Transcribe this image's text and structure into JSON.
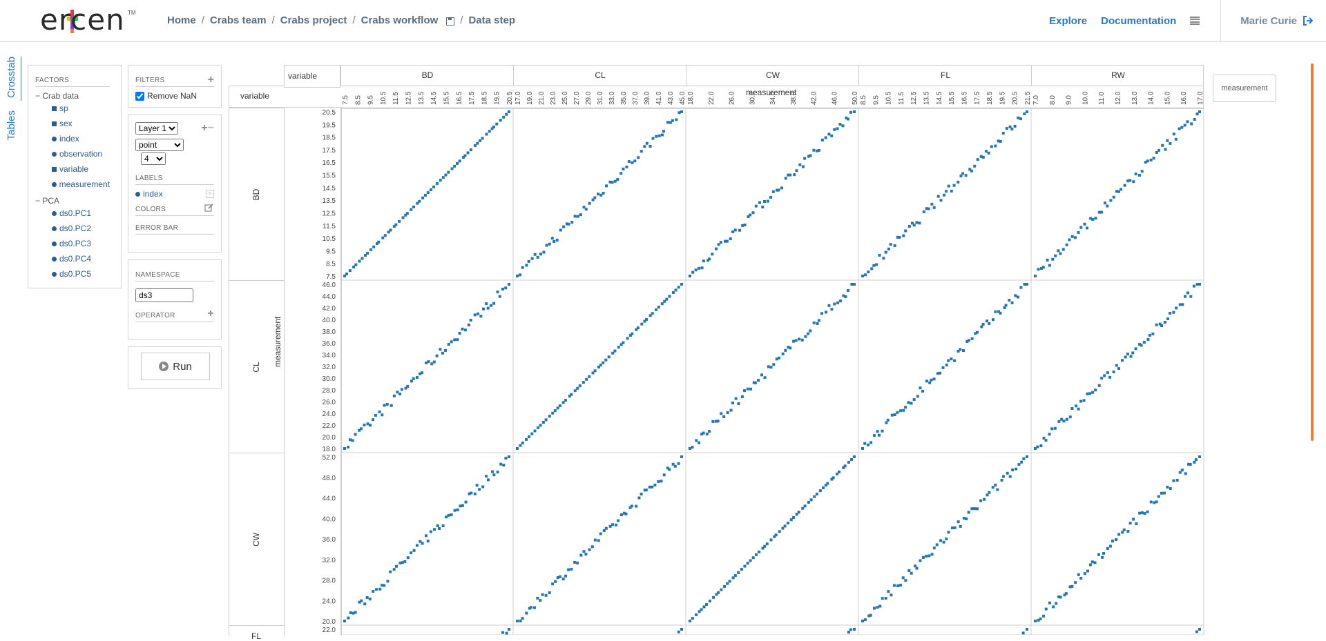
{
  "header": {
    "logo_text": "ercen",
    "logo_tm": "TM",
    "breadcrumb": [
      "Home",
      "Crabs team",
      "Crabs project",
      "Crabs workflow",
      "Data step"
    ],
    "nav": {
      "explore": "Explore",
      "documentation": "Documentation"
    },
    "user": "Marie Curie"
  },
  "vertical_tabs": {
    "crosstab": "Crosstab",
    "tables": "Tables"
  },
  "factors": {
    "title": "FACTORS",
    "groups": [
      {
        "name": "Crab data",
        "items": [
          {
            "label": "sp",
            "kind": "square"
          },
          {
            "label": "sex",
            "kind": "square"
          },
          {
            "label": "index",
            "kind": "dot"
          },
          {
            "label": "observation",
            "kind": "dot"
          },
          {
            "label": "variable",
            "kind": "square"
          },
          {
            "label": "measurement",
            "kind": "dot"
          }
        ]
      },
      {
        "name": "PCA",
        "items": [
          {
            "label": "ds0.PC1",
            "kind": "dot"
          },
          {
            "label": "ds0.PC2",
            "kind": "dot"
          },
          {
            "label": "ds0.PC3",
            "kind": "dot"
          },
          {
            "label": "ds0.PC4",
            "kind": "dot"
          },
          {
            "label": "ds0.PC5",
            "kind": "dot"
          }
        ]
      }
    ]
  },
  "filters": {
    "title": "FILTERS",
    "remove_nan": "Remove NaN",
    "remove_nan_checked": true
  },
  "layer": {
    "layer_select": "Layer 1",
    "geom_select": "point",
    "size_select": "4",
    "labels_title": "LABELS",
    "label_item": "index",
    "colors_title": "COLORS",
    "error_bar_title": "ERROR BAR"
  },
  "namespace": {
    "title": "NAMESPACE",
    "value": "ds3",
    "operator_title": "OPERATOR"
  },
  "run_label": "Run",
  "crosstab": {
    "col_factor": "variable",
    "row_factor": "variable",
    "x_axis_label": "measurement",
    "y_axis_label": "measurement",
    "columns": [
      "BD",
      "CL",
      "CW",
      "FL",
      "RW"
    ],
    "rows": [
      "BD",
      "CL",
      "CW",
      "FL"
    ],
    "side_pill": "measurement",
    "point_color": "#2475b4",
    "accent_color": "#f07a3a"
  },
  "chart_data": {
    "type": "scatter",
    "title": "",
    "x_ticks": {
      "BD": [
        "7.5",
        "8.5",
        "9.5",
        "10.5",
        "11.5",
        "12.5",
        "13.5",
        "14.5",
        "15.5",
        "16.5",
        "17.5",
        "18.5",
        "19.5",
        "20.5"
      ],
      "CL": [
        "17.0",
        "19.0",
        "21.0",
        "23.0",
        "25.0",
        "27.0",
        "29.0",
        "31.0",
        "33.0",
        "35.0",
        "37.0",
        "39.0",
        "41.0",
        "43.0",
        "45.0"
      ],
      "CW": [
        "18.0",
        "22.0",
        "26.0",
        "30.0",
        "34.0",
        "38.0",
        "42.0",
        "46.0",
        "50.0"
      ],
      "FL": [
        "8.5",
        "9.5",
        "10.5",
        "11.5",
        "12.5",
        "13.5",
        "14.5",
        "15.5",
        "16.5",
        "17.5",
        "18.5",
        "19.5",
        "20.5",
        "21.5"
      ],
      "RW": [
        "7.0",
        "8.0",
        "9.0",
        "10.0",
        "11.0",
        "12.0",
        "13.0",
        "14.0",
        "15.0",
        "16.0",
        "17.0"
      ]
    },
    "y_ticks": {
      "BD": [
        "20.5",
        "19.5",
        "18.5",
        "17.5",
        "16.5",
        "15.5",
        "14.5",
        "13.5",
        "12.5",
        "11.5",
        "10.5",
        "9.5",
        "8.5",
        "7.5"
      ],
      "CL": [
        "46.0",
        "44.0",
        "42.0",
        "40.0",
        "38.0",
        "36.0",
        "34.0",
        "32.0",
        "30.0",
        "28.0",
        "26.0",
        "24.0",
        "22.0",
        "20.0",
        "18.0"
      ],
      "CW": [
        "52.0",
        "48.0",
        "44.0",
        "40.0",
        "36.0",
        "32.0",
        "28.0",
        "24.0",
        "20.0"
      ],
      "FL": [
        "22.0"
      ]
    },
    "ranges": {
      "BD": [
        7.5,
        20.5
      ],
      "CL": [
        17.0,
        46.0
      ],
      "CW": [
        18.0,
        52.0
      ],
      "FL": [
        8.5,
        22.0
      ],
      "RW": [
        7.0,
        17.0
      ]
    },
    "note_points": "each cell plots measurement of row variable vs column variable; ~60 points per cell, strongly correlated"
  }
}
